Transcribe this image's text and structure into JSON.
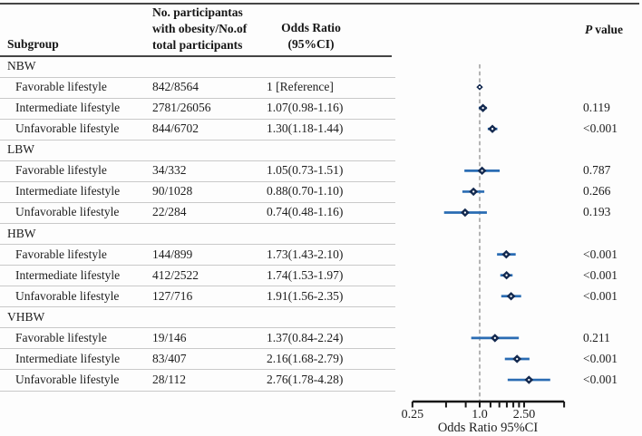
{
  "table": {
    "headers": {
      "subgroup": "Subgroup",
      "counts_line1": "No. participantas",
      "counts_line2": "with obesity/No.of",
      "counts_line3": "total participants",
      "or_line1": "Odds Ratio",
      "or_line2": "(95%CI)",
      "p_italic": "P",
      "p_rest": "value"
    }
  },
  "colors": {
    "ci_line": "#2a6cb3",
    "marker": "#13294f",
    "marker_center": "#fafafa",
    "reference_dashed_line": "#a3a3a3",
    "axis": "#171717",
    "row_separator": "#c9c9c9",
    "dark_rule": "#454545",
    "text": "#1d1d1d"
  },
  "chart_data": {
    "type": "scatter",
    "subtype": "forest-plot",
    "xscale": "log",
    "xlabel": "Odds Ratio 95%CI",
    "xlim": [
      0.25,
      5.7
    ],
    "reference_line": 1.0,
    "x_ticks": [
      0.25,
      0.5,
      0.75,
      1.0,
      1.25,
      1.5,
      1.75,
      2.0,
      2.25,
      2.5
    ],
    "x_tick_labels": [
      {
        "value": 0.25,
        "label": "0.25"
      },
      {
        "value": 1.0,
        "label": "1.0"
      },
      {
        "value": 2.5,
        "label": "2.50"
      }
    ],
    "grid": false,
    "legend": false,
    "sections": [
      {
        "label": "NBW",
        "rows": [
          {
            "label": "Favorable lifestyle",
            "counts": "842/8564",
            "or_text": "1 [Reference]",
            "or": 1.0,
            "lo": null,
            "hi": null,
            "p": "",
            "reference": true
          },
          {
            "label": "Intermediate lifestyle",
            "counts": "2781/26056",
            "or_text": "1.07(0.98-1.16)",
            "or": 1.07,
            "lo": 0.98,
            "hi": 1.16,
            "p": "0.119",
            "reference": false
          },
          {
            "label": "Unfavorable lifestyle",
            "counts": "844/6702",
            "or_text": "1.30(1.18-1.44)",
            "or": 1.3,
            "lo": 1.18,
            "hi": 1.44,
            "p": "<0.001",
            "reference": false
          }
        ]
      },
      {
        "label": "LBW",
        "rows": [
          {
            "label": "Favorable lifestyle",
            "counts": "34/332",
            "or_text": "1.05(0.73-1.51)",
            "or": 1.05,
            "lo": 0.73,
            "hi": 1.51,
            "p": "0.787",
            "reference": false
          },
          {
            "label": "Intermediate lifestyle",
            "counts": "90/1028",
            "or_text": "0.88(0.70-1.10)",
            "or": 0.88,
            "lo": 0.7,
            "hi": 1.1,
            "p": "0.266",
            "reference": false
          },
          {
            "label": "Unfavorable lifestyle",
            "counts": "22/284",
            "or_text": "0.74(0.48-1.16)",
            "or": 0.74,
            "lo": 0.48,
            "hi": 1.16,
            "p": "0.193",
            "reference": false
          }
        ]
      },
      {
        "label": "HBW",
        "rows": [
          {
            "label": "Favorable lifestyle",
            "counts": "144/899",
            "or_text": "1.73(1.43-2.10)",
            "or": 1.73,
            "lo": 1.43,
            "hi": 2.1,
            "p": "<0.001",
            "reference": false
          },
          {
            "label": "Intermediate lifestyle",
            "counts": "412/2522",
            "or_text": "1.74(1.53-1.97)",
            "or": 1.74,
            "lo": 1.53,
            "hi": 1.97,
            "p": "<0.001",
            "reference": false
          },
          {
            "label": "Unfavorable lifestyle",
            "counts": "127/716",
            "or_text": "1.91(1.56-2.35)",
            "or": 1.91,
            "lo": 1.56,
            "hi": 2.35,
            "p": "<0.001",
            "reference": false
          }
        ]
      },
      {
        "label": "VHBW",
        "rows": [
          {
            "label": "Favorable lifestyle",
            "counts": "19/146",
            "or_text": "1.37(0.84-2.24)",
            "or": 1.37,
            "lo": 0.84,
            "hi": 2.24,
            "p": "0.211",
            "reference": false
          },
          {
            "label": "Intermediate lifestyle",
            "counts": "83/407",
            "or_text": "2.16(1.68-2.79)",
            "or": 2.16,
            "lo": 1.68,
            "hi": 2.79,
            "p": "<0.001",
            "reference": false
          },
          {
            "label": "Unfavorable lifestyle",
            "counts": "28/112",
            "or_text": "2.76(1.78-4.28)",
            "or": 2.76,
            "lo": 1.78,
            "hi": 4.28,
            "p": "<0.001",
            "reference": false
          }
        ]
      }
    ]
  }
}
